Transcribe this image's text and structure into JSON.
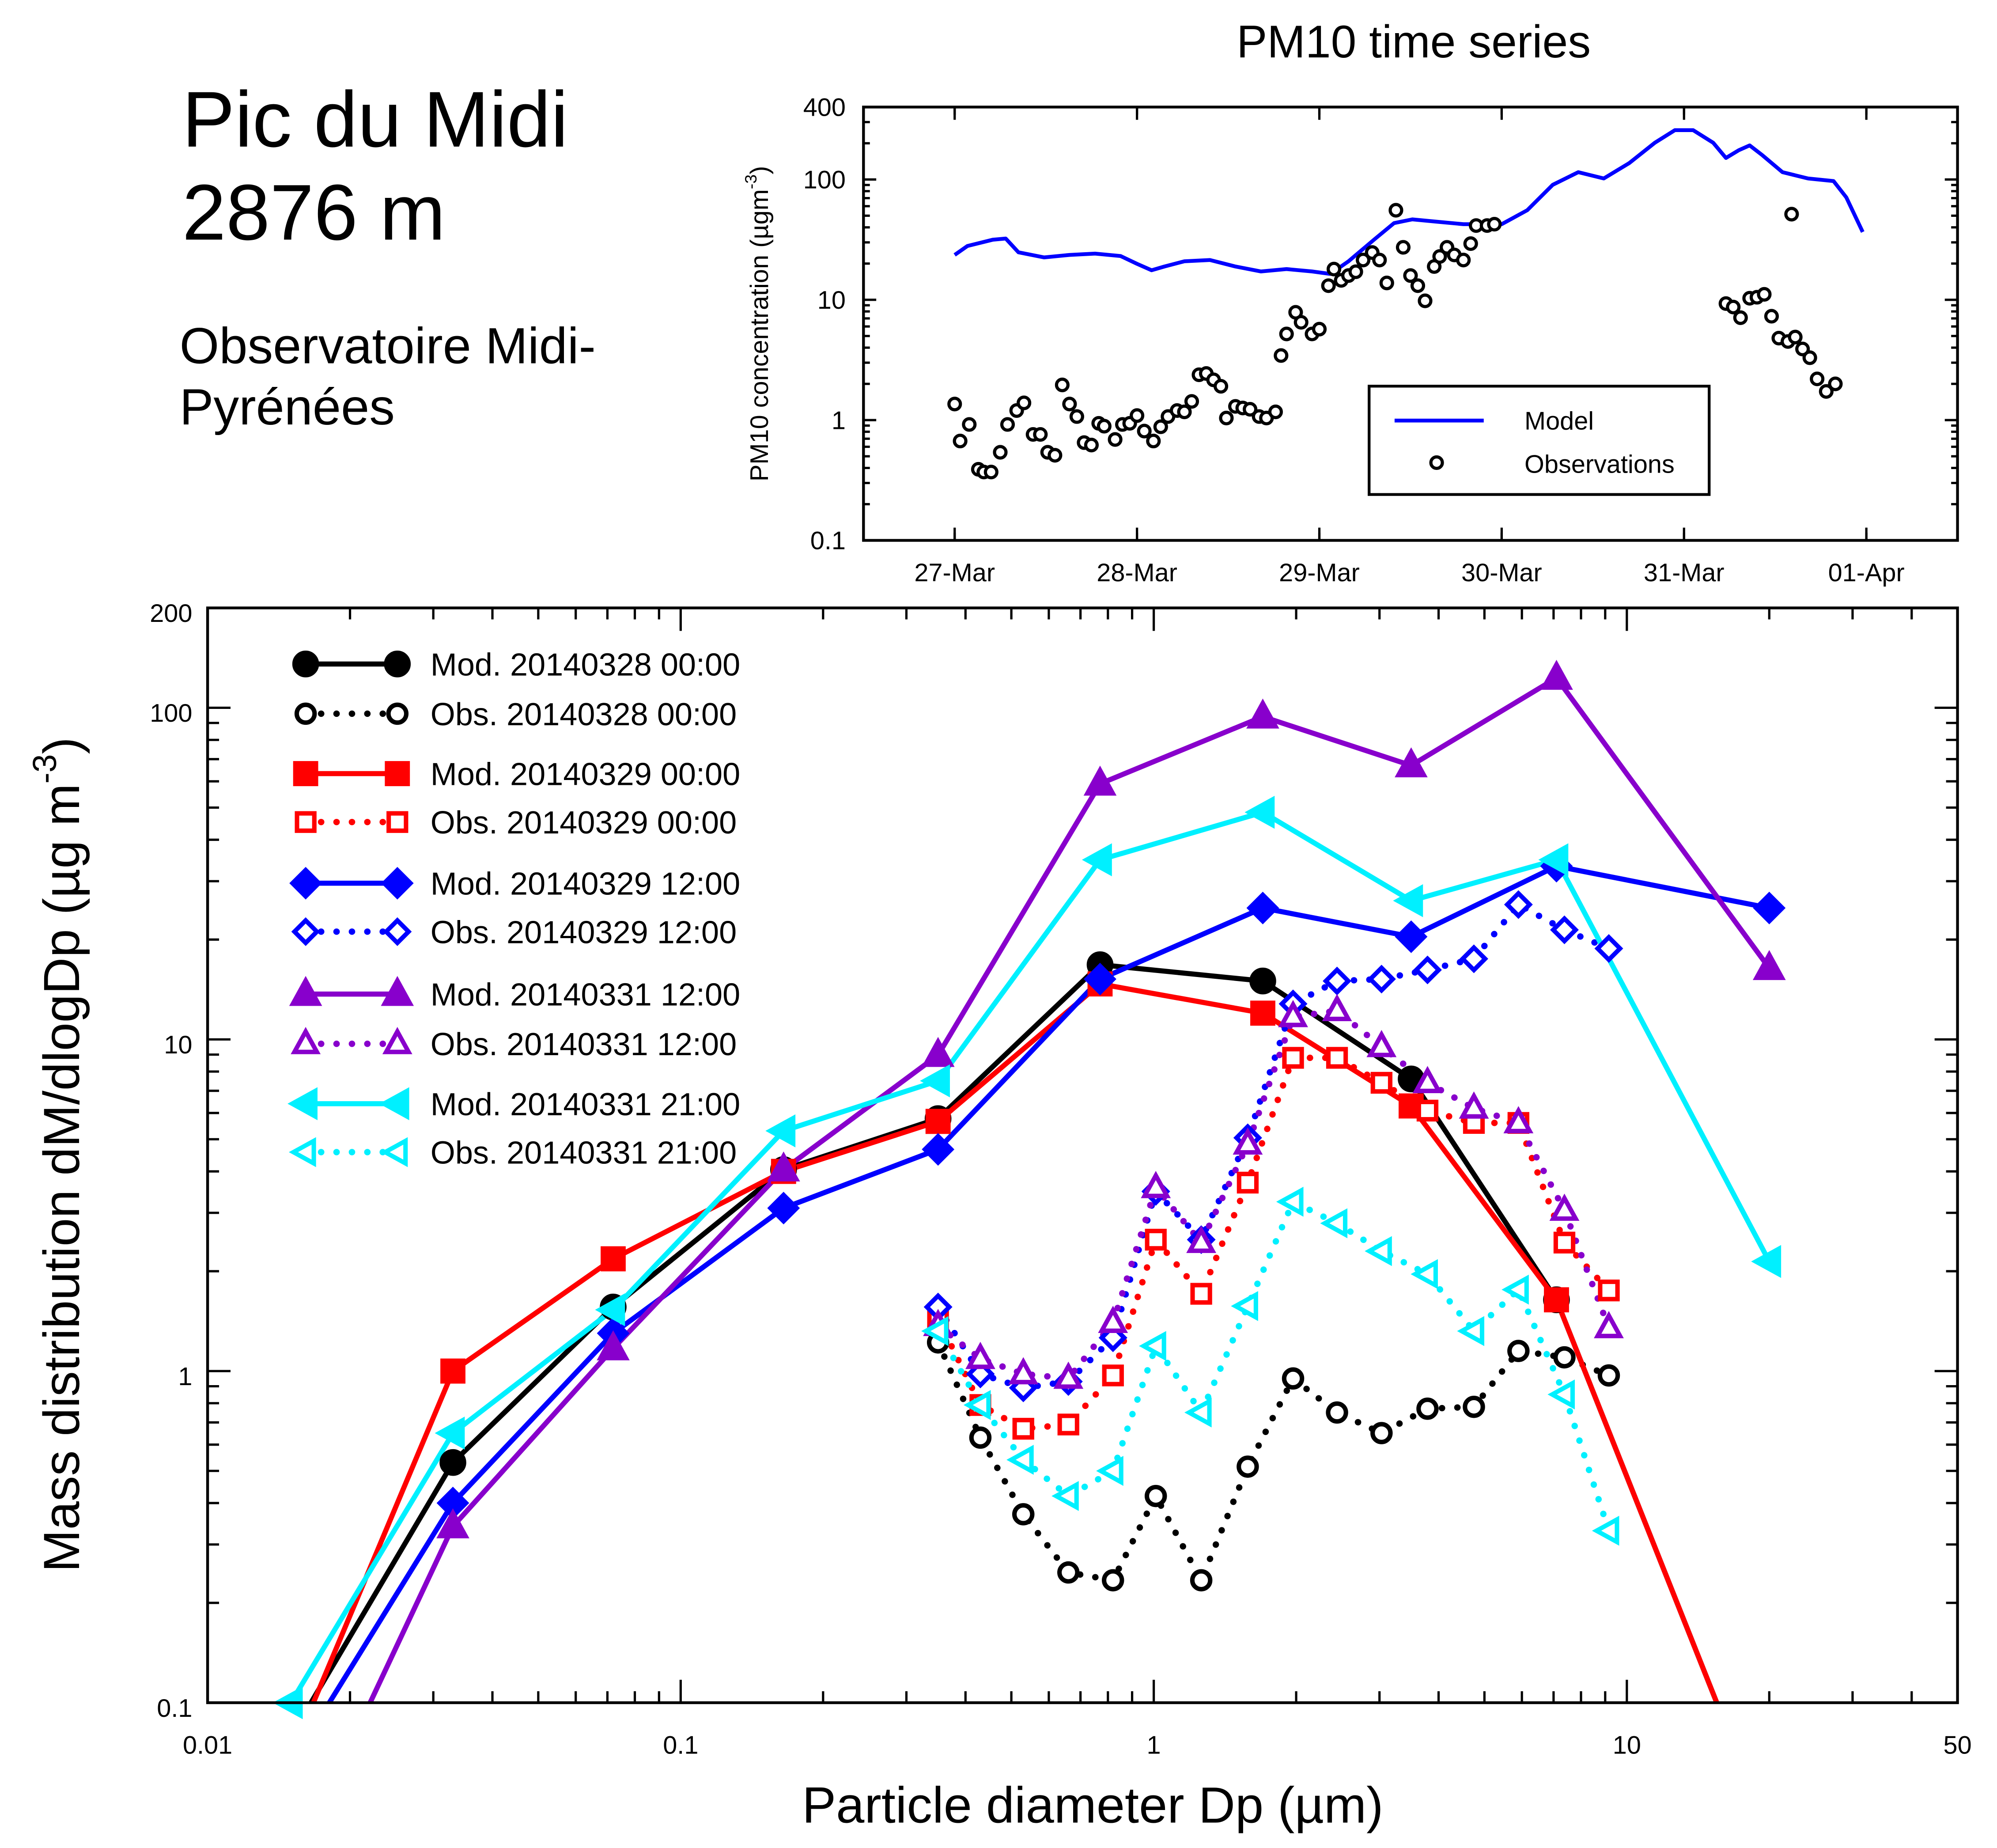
{
  "header": {
    "site_name": "Pic du Midi",
    "altitude": "2876 m",
    "institution_line1": "Observatoire Midi-",
    "institution_line2": "Pyrénées"
  },
  "chart_data": [
    {
      "type": "line",
      "title": "PM10 time series",
      "ylabel_parts": [
        "PM10 concentration (µgm",
        "-3",
        ")"
      ],
      "yscale": "log",
      "ylim": [
        0.1,
        400
      ],
      "yticks": [
        0.1,
        1,
        10,
        100,
        400
      ],
      "yticklabels": [
        "0.1",
        "1",
        "10",
        "100",
        "400"
      ],
      "x_units": "days since 27-Mar 00:00",
      "xlim": [
        -0.5,
        5.5
      ],
      "xticks": [
        0,
        1,
        2,
        3,
        4,
        5
      ],
      "xticklabels": [
        "27-Mar",
        "28-Mar",
        "29-Mar",
        "30-Mar",
        "31-Mar",
        "01-Apr"
      ],
      "legend_position": "lower-right",
      "series": [
        {
          "name": "Model",
          "color": "#0000ff",
          "style": "line",
          "x": [
            0,
            0.07,
            0.21,
            0.28,
            0.35,
            0.49,
            0.63,
            0.77,
            0.91,
            1.0,
            1.08,
            1.15,
            1.26,
            1.4,
            1.54,
            1.68,
            1.82,
            1.96,
            2.06,
            2.16,
            2.3,
            2.41,
            2.51,
            2.65,
            2.79,
            3.0,
            3.14,
            3.28,
            3.42,
            3.56,
            3.7,
            3.84,
            3.95,
            4.05,
            4.16,
            4.23,
            4.3,
            4.36,
            4.43,
            4.54,
            4.68,
            4.82,
            4.89,
            4.98
          ],
          "y": [
            23.6,
            28,
            31.6,
            32.3,
            24.8,
            22.5,
            23.6,
            24.2,
            23.1,
            19.9,
            17.6,
            18.9,
            20.9,
            21.4,
            18.9,
            17.2,
            18.0,
            17.2,
            16.4,
            20.9,
            31.6,
            43.4,
            46.6,
            44.5,
            42.5,
            42.5,
            55.5,
            90.3,
            115,
            102,
            137,
            202,
            257,
            257,
            202,
            151,
            175,
            192,
            159,
            115,
            102,
            97,
            71,
            36.6
          ]
        },
        {
          "name": "Observations",
          "color": "#000000",
          "style": "open-circle",
          "x": [
            0,
            0.03,
            0.08,
            0.13,
            0.16,
            0.2,
            0.25,
            0.29,
            0.34,
            0.38,
            0.43,
            0.47,
            0.51,
            0.55,
            0.59,
            0.63,
            0.67,
            0.71,
            0.75,
            0.79,
            0.82,
            0.88,
            0.92,
            0.96,
            1.0,
            1.04,
            1.09,
            1.13,
            1.17,
            1.22,
            1.26,
            1.3,
            1.34,
            1.38,
            1.42,
            1.46,
            1.49,
            1.54,
            1.58,
            1.62,
            1.67,
            1.71,
            1.76,
            1.79,
            1.82,
            1.87,
            1.9,
            1.96,
            2.0,
            2.05,
            2.08,
            2.12,
            2.16,
            2.2,
            2.24,
            2.29,
            2.33,
            2.37,
            2.42,
            2.46,
            2.5,
            2.54,
            2.58,
            2.63,
            2.66,
            2.7,
            2.74,
            2.79,
            2.83,
            2.86,
            2.92,
            2.96,
            4.23,
            4.27,
            4.31,
            4.36,
            4.4,
            4.44,
            4.48,
            4.52,
            4.57,
            4.59,
            4.61,
            4.65,
            4.69,
            4.73,
            4.78,
            4.83
          ],
          "y": [
            1.36,
            0.67,
            0.92,
            0.39,
            0.37,
            0.37,
            0.54,
            0.92,
            1.2,
            1.39,
            0.76,
            0.76,
            0.54,
            0.51,
            1.96,
            1.36,
            1.07,
            0.65,
            0.62,
            0.94,
            0.89,
            0.69,
            0.92,
            0.94,
            1.09,
            0.81,
            0.67,
            0.88,
            1.07,
            1.2,
            1.17,
            1.43,
            2.38,
            2.44,
            2.16,
            1.91,
            1.04,
            1.3,
            1.26,
            1.23,
            1.07,
            1.04,
            1.17,
            3.44,
            5.2,
            7.87,
            6.5,
            5.2,
            5.7,
            13.1,
            18.0,
            14.5,
            15.9,
            17.1,
            21.4,
            24.7,
            21.4,
            13.8,
            55.5,
            27.3,
            15.9,
            13.1,
            9.8,
            18.9,
            22.9,
            27.3,
            23.6,
            21.4,
            29.3,
            41.4,
            41.4,
            42.5,
            9.3,
            8.7,
            7.1,
            10.3,
            10.5,
            11.1,
            7.3,
            4.8,
            4.5,
            51.5,
            4.9,
            3.9,
            3.3,
            2.2,
            1.73,
            2.0
          ]
        }
      ]
    },
    {
      "type": "line",
      "title": "",
      "xlabel": "Particle diameter Dp (µm)",
      "ylabel_parts": [
        "Mass distribution dM/dlogDp (µg m",
        "-3",
        ")"
      ],
      "xscale": "log",
      "yscale": "log",
      "xlim": [
        0.01,
        50
      ],
      "ylim": [
        0.1,
        200
      ],
      "xticks": [
        0.01,
        0.1,
        1,
        10,
        50
      ],
      "xticklabels": [
        "0.01",
        "0.1",
        "1",
        "10",
        "50"
      ],
      "yticks": [
        0.1,
        1,
        10,
        100,
        200
      ],
      "yticklabels": [
        "0.1",
        "1",
        "10",
        "100",
        "200"
      ],
      "legend_position": "top-left",
      "model_x": [
        0.015,
        0.033,
        0.072,
        0.165,
        0.35,
        0.77,
        1.7,
        3.5,
        7.1,
        20
      ],
      "obs_x": [
        0.35,
        0.43,
        0.53,
        0.66,
        0.82,
        1.01,
        1.26,
        1.58,
        1.97,
        2.44,
        3.03,
        3.79,
        4.75,
        5.9,
        7.38,
        9.16
      ],
      "series": [
        {
          "name": "Mod. 20140328 00:00",
          "kind": "model",
          "color": "#000000",
          "marker": "circle",
          "y": [
            0.079,
            0.53,
            1.56,
            4.05,
            5.77,
            16.8,
            15.0,
            7.6,
            1.64,
            0.04
          ]
        },
        {
          "name": "Obs. 20140328 00:00",
          "kind": "obs",
          "color": "#000000",
          "marker": "circle",
          "y": [
            1.22,
            0.63,
            0.37,
            0.247,
            0.234,
            0.42,
            0.234,
            0.515,
            0.95,
            0.75,
            0.65,
            0.77,
            0.78,
            1.15,
            1.1,
            0.97
          ]
        },
        {
          "name": "Mod. 20140329 00:00",
          "kind": "model",
          "color": "#ff0000",
          "marker": "square",
          "y": [
            0.069,
            1.0,
            2.18,
            4.0,
            5.66,
            14.7,
            12.0,
            6.3,
            1.64,
            0.04
          ]
        },
        {
          "name": "Obs. 20140329 00:00",
          "kind": "obs",
          "color": "#ff0000",
          "marker": "square",
          "y": [
            1.44,
            0.79,
            0.67,
            0.69,
            0.97,
            2.49,
            1.71,
            3.7,
            8.8,
            8.8,
            7.4,
            6.1,
            5.6,
            5.6,
            2.44,
            1.75
          ]
        },
        {
          "name": "Mod. 20140329 12:00",
          "kind": "model",
          "color": "#0000ff",
          "marker": "diamond",
          "y": [
            0.065,
            0.4,
            1.3,
            3.1,
            4.66,
            15.2,
            24.9,
            20.4,
            33.3,
            24.9
          ]
        },
        {
          "name": "Obs. 20140329 12:00",
          "kind": "obs",
          "color": "#0000ff",
          "marker": "diamond",
          "y": [
            1.56,
            0.98,
            0.89,
            0.93,
            1.26,
            3.48,
            2.49,
            5.05,
            12.8,
            15.0,
            15.2,
            16.2,
            17.5,
            25.5,
            21.4,
            18.8
          ]
        },
        {
          "name": "Mod. 20140331 12:00",
          "kind": "model",
          "color": "#8800cc",
          "marker": "triangle-up",
          "y": [
            0.031,
            0.34,
            1.17,
            4.05,
            8.97,
            59,
            94,
            67,
            123,
            16.4
          ]
        },
        {
          "name": "Obs. 20140331 12:00",
          "kind": "obs",
          "color": "#8800cc",
          "marker": "triangle-up",
          "y": [
            1.37,
            1.09,
            0.98,
            0.95,
            1.4,
            3.57,
            2.44,
            4.83,
            11.7,
            12.2,
            9.5,
            7.4,
            6.2,
            5.6,
            3.05,
            1.35
          ]
        },
        {
          "name": "Mod. 20140331 21:00",
          "kind": "model",
          "color": "#00f0ff",
          "marker": "triangle-left",
          "y": [
            0.1,
            0.65,
            1.53,
            5.3,
            7.5,
            34.8,
            48.4,
            26.2,
            34.8,
            2.14
          ]
        },
        {
          "name": "Obs. 20140331 21:00",
          "kind": "obs",
          "color": "#00f0ff",
          "marker": "triangle-left",
          "y": [
            1.32,
            0.79,
            0.54,
            0.42,
            0.5,
            1.19,
            0.75,
            1.57,
            3.24,
            2.79,
            2.3,
            1.96,
            1.32,
            1.76,
            0.85,
            0.33
          ]
        }
      ]
    }
  ]
}
